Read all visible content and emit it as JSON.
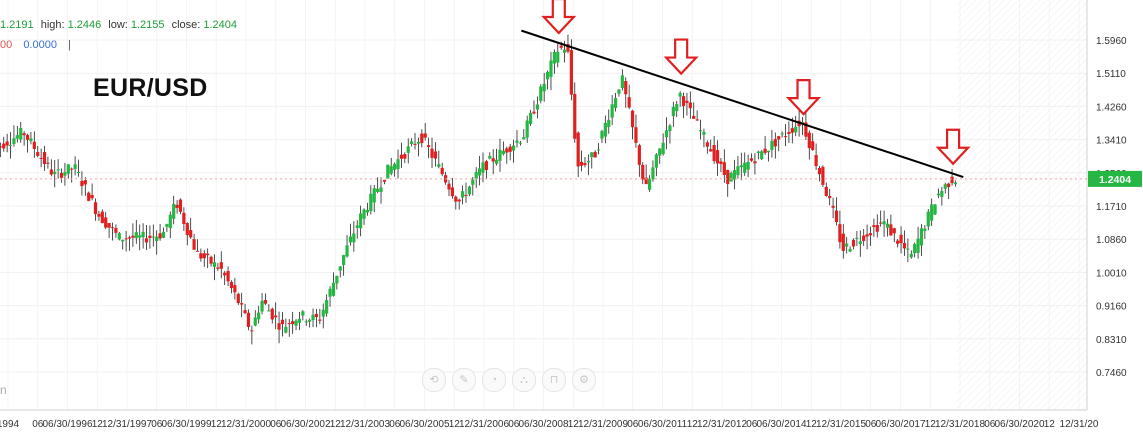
{
  "ohlc": {
    "open_value": "1.2191",
    "high_label": "high:",
    "high_value": "1.2446",
    "low_label": "low:",
    "low_value": "1.2155",
    "close_label": "close:",
    "close_value": "1.2404"
  },
  "indicator": {
    "value_left": "00",
    "value": "0.0000",
    "separator": "|"
  },
  "corner_glyph": "n",
  "current_price": "1.2404",
  "colors": {
    "up": "#26b644",
    "down": "#e02020",
    "trendline": "#000000",
    "marker": "#e02020",
    "price_tag": "#26b644",
    "price_line": "#f2a0a0"
  },
  "toolbar": {
    "icons": [
      "circle-arrows-icon",
      "drawing-tools-icon",
      "measure-icon",
      "indicator-icon",
      "magnet-icon",
      "settings-icon"
    ],
    "glyphs": [
      "⟲",
      "✎",
      "◔",
      "⛬",
      "⊓",
      "⚙"
    ]
  },
  "chart_data": {
    "type": "candlestick",
    "title": "EUR/USD",
    "y_ticks": [
      "1.5960",
      "1.5110",
      "1.4260",
      "1.3410",
      "1.2560",
      "1.1710",
      "1.0860",
      "1.0010",
      "0.9160",
      "0.8310",
      "0.7460"
    ],
    "ylim": [
      0.7,
      1.63
    ],
    "x_tick_labels": [
      "1994",
      "06",
      "06/30/1996",
      "12",
      "12/31/1997",
      "06",
      "06/30/1999",
      "12",
      "12/31/2000",
      "06",
      "06/30/2002",
      "12",
      "12/31/2003",
      "06",
      "06/30/2005",
      "12",
      "12/31/2006",
      "06",
      "06/30/2008",
      "12",
      "12/31/2009",
      "06",
      "06/30/2011",
      "12",
      "12/31/2012",
      "06",
      "06/30/2014",
      "12",
      "12/31/2015",
      "06",
      "06/30/2017",
      "12",
      "12/31/2018",
      "06",
      "06/30/2020",
      "12",
      "12/31/20"
    ],
    "price_anchors": [
      {
        "t": "1994-07",
        "p": 1.32
      },
      {
        "t": "1995-03",
        "p": 1.36
      },
      {
        "t": "1995-07",
        "p": 1.31
      },
      {
        "t": "1995-12",
        "p": 1.25
      },
      {
        "t": "1996-06",
        "p": 1.27
      },
      {
        "t": "1997-01",
        "p": 1.15
      },
      {
        "t": "1997-07",
        "p": 1.09
      },
      {
        "t": "1998-03",
        "p": 1.09
      },
      {
        "t": "1998-08",
        "p": 1.1
      },
      {
        "t": "1998-12",
        "p": 1.18
      },
      {
        "t": "1999-06",
        "p": 1.05
      },
      {
        "t": "2000-01",
        "p": 1.01
      },
      {
        "t": "2000-06",
        "p": 0.93
      },
      {
        "t": "2000-10",
        "p": 0.85
      },
      {
        "t": "2001-01",
        "p": 0.93
      },
      {
        "t": "2001-07",
        "p": 0.86
      },
      {
        "t": "2001-12",
        "p": 0.89
      },
      {
        "t": "2002-06",
        "p": 0.88
      },
      {
        "t": "2003-01",
        "p": 1.04
      },
      {
        "t": "2003-06",
        "p": 1.14
      },
      {
        "t": "2004-02",
        "p": 1.26
      },
      {
        "t": "2004-12",
        "p": 1.35
      },
      {
        "t": "2005-11",
        "p": 1.18
      },
      {
        "t": "2006-06",
        "p": 1.27
      },
      {
        "t": "2007-06",
        "p": 1.35
      },
      {
        "t": "2008-04",
        "p": 1.57
      },
      {
        "t": "2008-07",
        "p": 1.58
      },
      {
        "t": "2008-10",
        "p": 1.27
      },
      {
        "t": "2009-03",
        "p": 1.3
      },
      {
        "t": "2009-11",
        "p": 1.5
      },
      {
        "t": "2010-06",
        "p": 1.21
      },
      {
        "t": "2011-04",
        "p": 1.46
      },
      {
        "t": "2012-06",
        "p": 1.24
      },
      {
        "t": "2013-06",
        "p": 1.32
      },
      {
        "t": "2014-04",
        "p": 1.39
      },
      {
        "t": "2015-01",
        "p": 1.16
      },
      {
        "t": "2015-04",
        "p": 1.06
      },
      {
        "t": "2016-04",
        "p": 1.13
      },
      {
        "t": "2016-12",
        "p": 1.04
      },
      {
        "t": "2017-08",
        "p": 1.2
      },
      {
        "t": "2017-12",
        "p": 1.24
      }
    ],
    "resistance_line": {
      "start": {
        "t": "2007-05",
        "p": 1.62
      },
      "end": {
        "t": "2018-03",
        "p": 1.245
      }
    },
    "peak_markers": [
      "2008-04",
      "2011-04",
      "2014-04",
      "2017-12"
    ],
    "last_close": 1.2404
  }
}
